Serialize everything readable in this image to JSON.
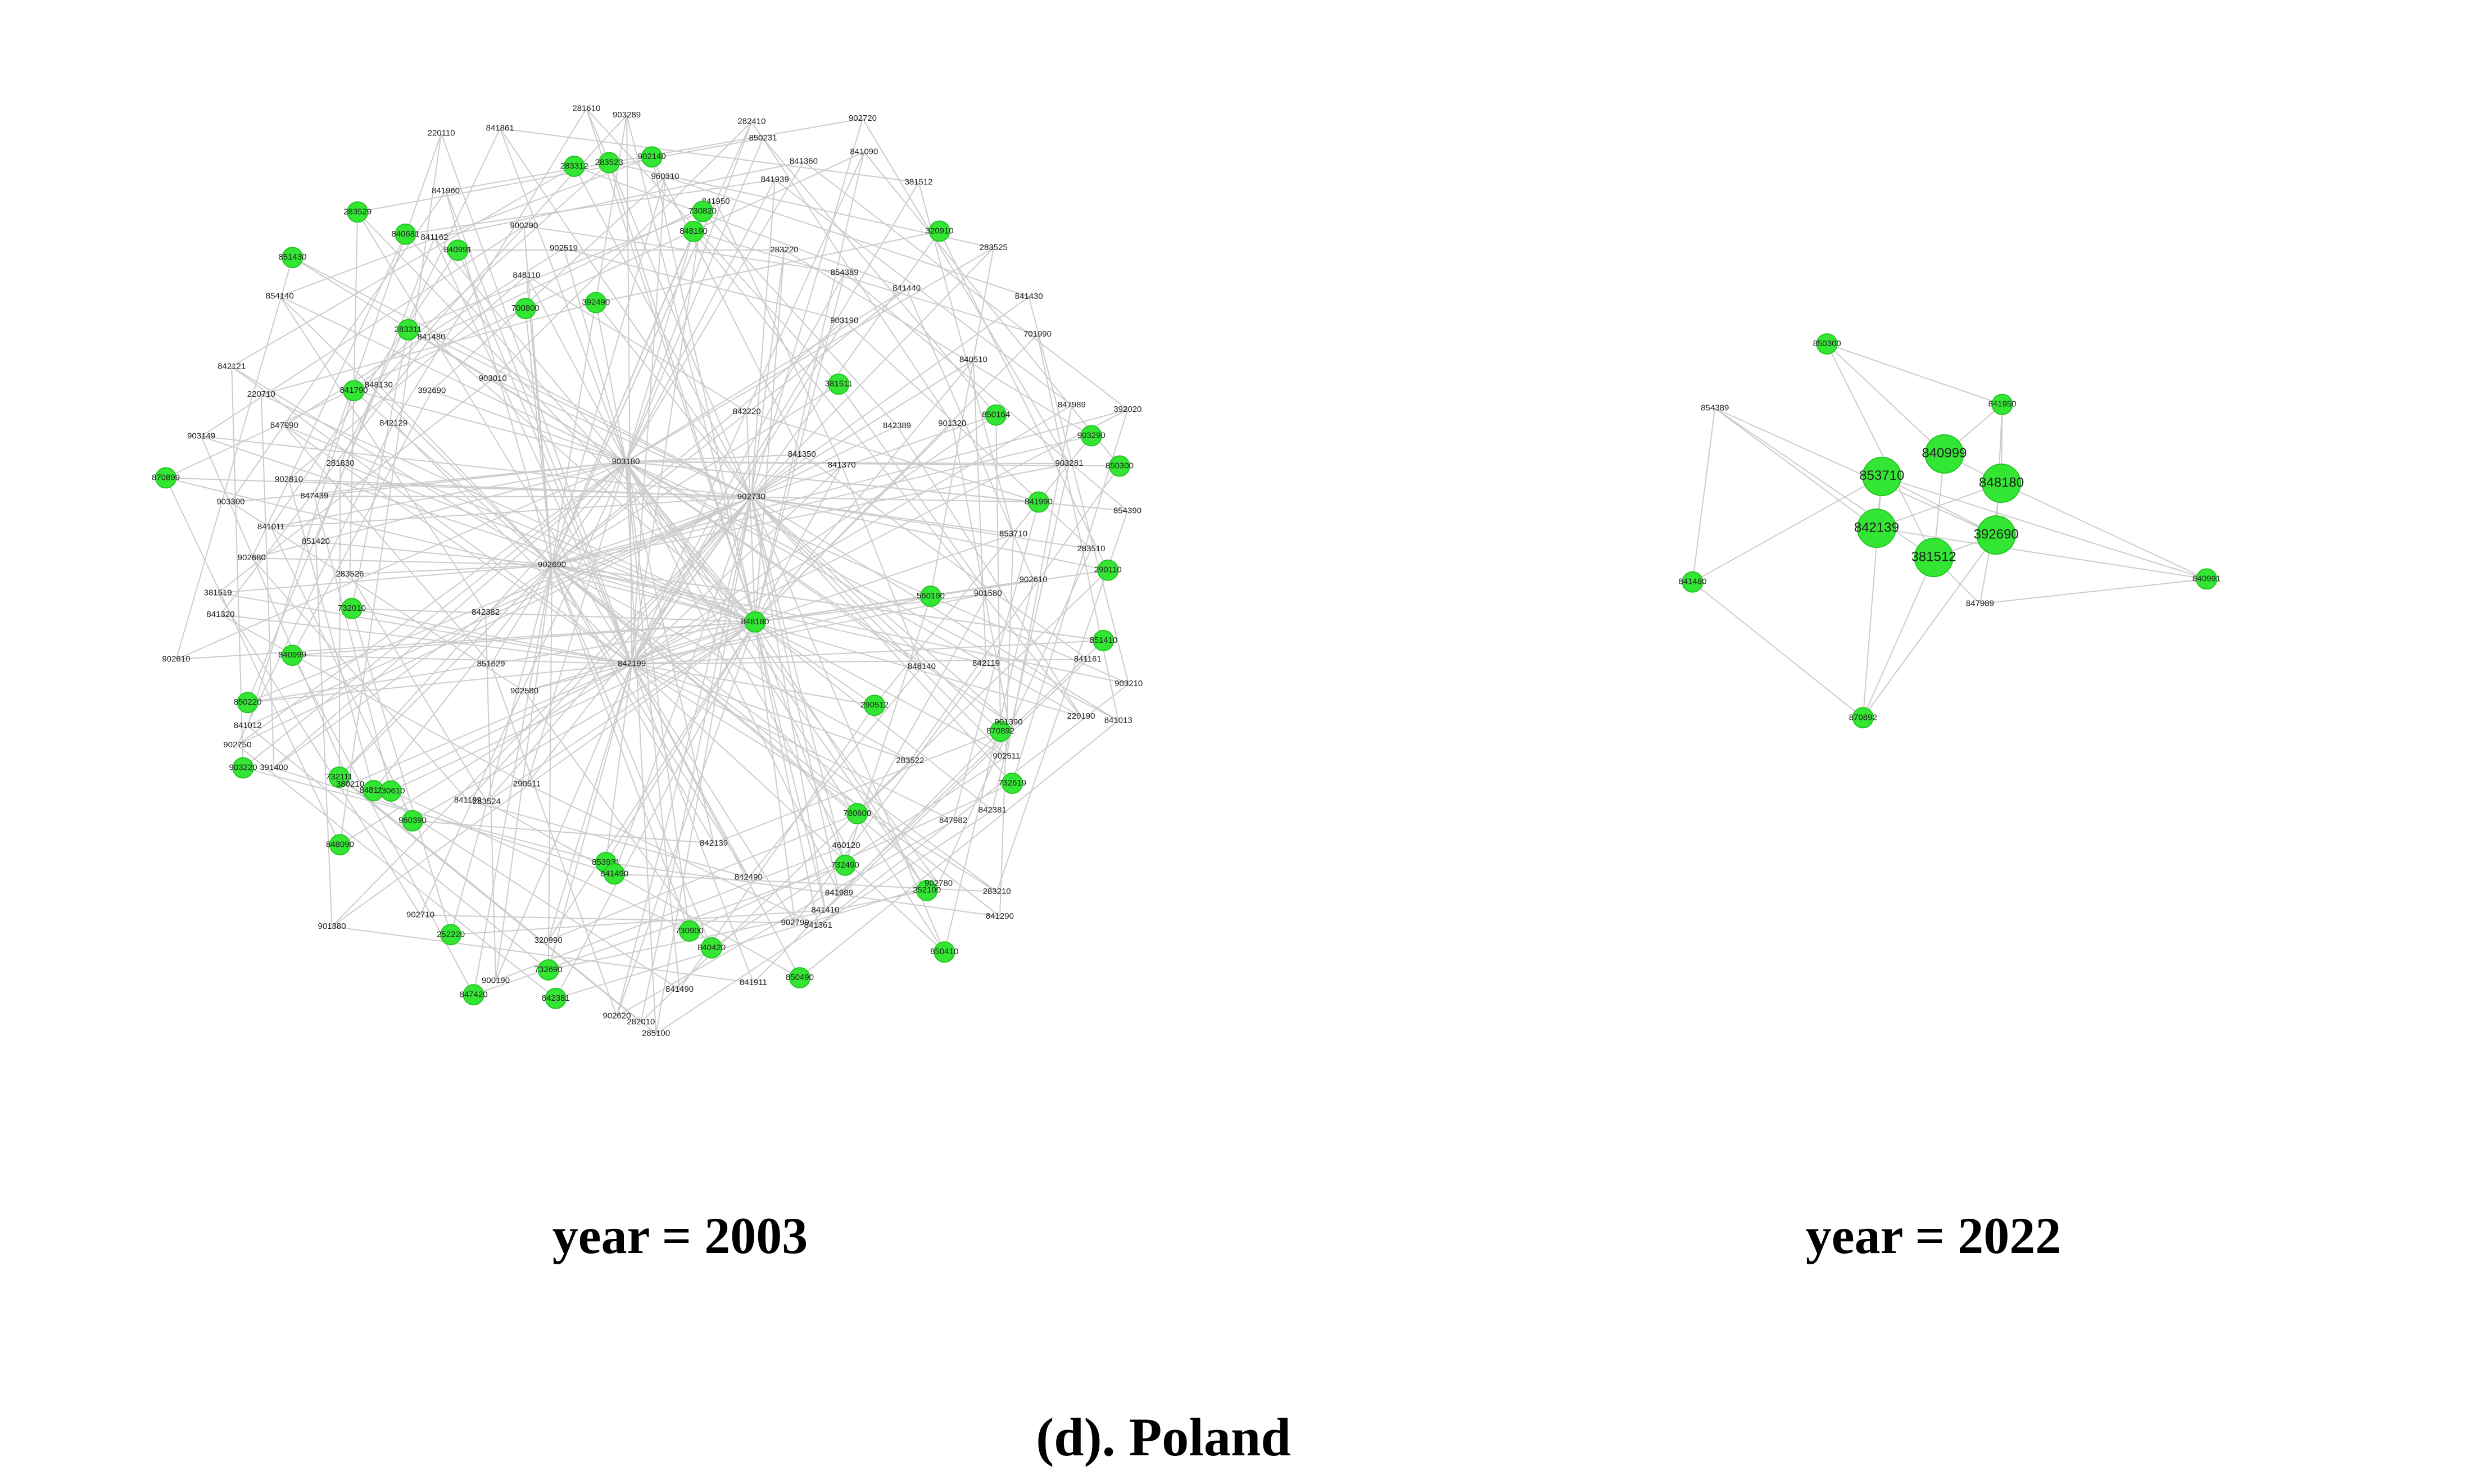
{
  "colors": {
    "node_fill": "#33e633",
    "edge": "#cccccc",
    "text": "#000000"
  },
  "figure": {
    "caption": "(d). Poland"
  },
  "networks": [
    {
      "title": "year = 2003",
      "hubs": [
        "842199",
        "848180",
        "903180",
        "902690",
        "902730"
      ],
      "nodes": [
        {
          "label": "848180",
          "green": true
        },
        {
          "label": "848090",
          "green": true
        },
        {
          "label": "848190",
          "green": true
        },
        {
          "label": "252100",
          "green": true
        },
        {
          "label": "870899",
          "green": true
        },
        {
          "label": "701990",
          "green": false
        },
        {
          "label": "732690",
          "green": true
        },
        {
          "label": "700800",
          "green": true
        },
        {
          "label": "841013",
          "green": false
        },
        {
          "label": "841012",
          "green": false
        },
        {
          "label": "841090",
          "green": false
        },
        {
          "label": "850490",
          "green": true
        },
        {
          "label": "841790",
          "green": true
        },
        {
          "label": "850300",
          "green": true
        },
        {
          "label": "283524",
          "green": false
        },
        {
          "label": "283523",
          "green": true
        },
        {
          "label": "283522",
          "green": false
        },
        {
          "label": "283526",
          "green": false
        },
        {
          "label": "283525",
          "green": false
        },
        {
          "label": "282010",
          "green": false
        },
        {
          "label": "283529",
          "green": true
        },
        {
          "label": "560190",
          "green": true
        },
        {
          "label": "732111",
          "green": true
        },
        {
          "label": "850231",
          "green": false
        },
        {
          "label": "732490",
          "green": true
        },
        {
          "label": "281830",
          "green": false
        },
        {
          "label": "850164",
          "green": true
        },
        {
          "label": "847420",
          "green": true
        },
        {
          "label": "841861",
          "green": false
        },
        {
          "label": "870892",
          "green": true
        },
        {
          "label": "840999",
          "green": true
        },
        {
          "label": "381512",
          "green": false
        },
        {
          "label": "842139",
          "green": false
        },
        {
          "label": "392690",
          "green": false
        },
        {
          "label": "853710",
          "green": false
        },
        {
          "label": "960390",
          "green": true
        },
        {
          "label": "960310",
          "green": false
        },
        {
          "label": "841290",
          "green": false
        },
        {
          "label": "841011",
          "green": false
        },
        {
          "label": "841430",
          "green": false
        },
        {
          "label": "853931",
          "green": true
        },
        {
          "label": "840991",
          "green": true
        },
        {
          "label": "903210",
          "green": false
        },
        {
          "label": "903220",
          "green": true
        },
        {
          "label": "283220",
          "green": false
        },
        {
          "label": "841361",
          "green": false
        },
        {
          "label": "842121",
          "green": false
        },
        {
          "label": "903290",
          "green": true
        },
        {
          "label": "290511",
          "green": false
        },
        {
          "label": "283312",
          "green": true
        },
        {
          "label": "290512",
          "green": true
        },
        {
          "label": "841320",
          "green": false
        },
        {
          "label": "841440",
          "green": false
        },
        {
          "label": "841490",
          "green": false
        },
        {
          "label": "841480",
          "green": false
        },
        {
          "label": "902610",
          "green": false
        },
        {
          "label": "848130",
          "green": true
        },
        {
          "label": "841950",
          "green": false
        },
        {
          "label": "850410",
          "green": true
        },
        {
          "label": "902810",
          "green": false
        },
        {
          "label": "841370",
          "green": false
        },
        {
          "label": "842199",
          "green": false
        },
        {
          "label": "848110",
          "green": false
        },
        {
          "label": "848140",
          "green": false
        },
        {
          "label": "850220",
          "green": true
        },
        {
          "label": "842220",
          "green": false
        },
        {
          "label": "842490",
          "green": false
        },
        {
          "label": "848130b",
          "green": false
        },
        {
          "label": "841990",
          "green": true
        },
        {
          "label": "841199",
          "green": false
        },
        {
          "label": "903289",
          "green": false
        },
        {
          "label": "847982",
          "green": false
        },
        {
          "label": "902680",
          "green": false
        },
        {
          "label": "902690",
          "green": false
        },
        {
          "label": "902620",
          "green": false
        },
        {
          "label": "840681",
          "green": true
        },
        {
          "label": "851410",
          "green": true
        },
        {
          "label": "851629",
          "green": false
        },
        {
          "label": "841939",
          "green": false
        },
        {
          "label": "841989",
          "green": false
        },
        {
          "label": "847990",
          "green": false
        },
        {
          "label": "847989",
          "green": false
        },
        {
          "label": "903180",
          "green": false
        },
        {
          "label": "902519",
          "green": false
        },
        {
          "label": "902511",
          "green": false
        },
        {
          "label": "902610b",
          "green": false
        },
        {
          "label": "903190",
          "green": false
        },
        {
          "label": "840420",
          "green": true
        },
        {
          "label": "851430",
          "green": true
        },
        {
          "label": "283510",
          "green": false
        },
        {
          "label": "902580",
          "green": false
        },
        {
          "label": "902730",
          "green": false
        },
        {
          "label": "902780",
          "green": false
        },
        {
          "label": "903300",
          "green": false
        },
        {
          "label": "840510",
          "green": false
        },
        {
          "label": "842381",
          "green": true
        },
        {
          "label": "841960",
          "green": false
        },
        {
          "label": "842119",
          "green": false
        },
        {
          "label": "902750",
          "green": false
        },
        {
          "label": "902720",
          "green": false
        },
        {
          "label": "902790",
          "green": false
        },
        {
          "label": "842129",
          "green": false
        },
        {
          "label": "903281",
          "green": false
        },
        {
          "label": "902710",
          "green": false
        },
        {
          "label": "281610",
          "green": false
        },
        {
          "label": "842381b",
          "green": false
        },
        {
          "label": "381519",
          "green": false
        },
        {
          "label": "381511",
          "green": true
        },
        {
          "label": "285100",
          "green": false
        },
        {
          "label": "903010",
          "green": false
        },
        {
          "label": "901580",
          "green": false
        },
        {
          "label": "380210",
          "green": false
        },
        {
          "label": "282410",
          "green": false
        },
        {
          "label": "460120",
          "green": false
        },
        {
          "label": "903149",
          "green": false
        },
        {
          "label": "901320",
          "green": false
        },
        {
          "label": "900190",
          "green": false
        },
        {
          "label": "900290",
          "green": false
        },
        {
          "label": "901390",
          "green": false
        },
        {
          "label": "842382",
          "green": false
        },
        {
          "label": "854389",
          "green": false
        },
        {
          "label": "841911",
          "green": false
        },
        {
          "label": "854140",
          "green": false
        },
        {
          "label": "854390",
          "green": false
        },
        {
          "label": "901380",
          "green": false
        },
        {
          "label": "902140",
          "green": true
        },
        {
          "label": "283210",
          "green": false
        },
        {
          "label": "851420",
          "green": false
        },
        {
          "label": "841350",
          "green": false
        },
        {
          "label": "841490b",
          "green": true
        },
        {
          "label": "841162",
          "green": false
        },
        {
          "label": "841161",
          "green": false
        },
        {
          "label": "391400",
          "green": false
        },
        {
          "label": "841360",
          "green": false
        },
        {
          "label": "841410",
          "green": false
        },
        {
          "label": "220710",
          "green": false
        },
        {
          "label": "392020",
          "green": false
        },
        {
          "label": "252220",
          "green": true
        },
        {
          "label": "392490",
          "green": true
        },
        {
          "label": "732619",
          "green": true
        },
        {
          "label": "732010",
          "green": true
        },
        {
          "label": "320910",
          "green": true
        },
        {
          "label": "730900",
          "green": true
        },
        {
          "label": "283311",
          "green": true
        },
        {
          "label": "290110",
          "green": true
        },
        {
          "label": "730610",
          "green": true
        },
        {
          "label": "730820",
          "green": true
        },
        {
          "label": "780600",
          "green": true
        },
        {
          "label": "847439",
          "green": false
        },
        {
          "label": "842389",
          "green": false
        },
        {
          "label": "320990",
          "green": false
        },
        {
          "label": "220110",
          "green": false
        },
        {
          "label": "220190",
          "green": false
        }
      ]
    },
    {
      "title": "year = 2022",
      "hubs": [
        "392690",
        "381512",
        "842139",
        "848180",
        "853710",
        "840999"
      ],
      "nodes": [
        {
          "label": "392690",
          "green": true
        },
        {
          "label": "381512",
          "green": true
        },
        {
          "label": "842139",
          "green": true
        },
        {
          "label": "853710",
          "green": true
        },
        {
          "label": "840999",
          "green": true
        },
        {
          "label": "848180",
          "green": true
        },
        {
          "label": "870892",
          "green": true
        },
        {
          "label": "850300",
          "green": true
        },
        {
          "label": "840991",
          "green": true
        },
        {
          "label": "841480",
          "green": true
        },
        {
          "label": "841950",
          "green": true
        },
        {
          "label": "847989",
          "green": false
        },
        {
          "label": "854389",
          "green": false
        }
      ]
    }
  ]
}
